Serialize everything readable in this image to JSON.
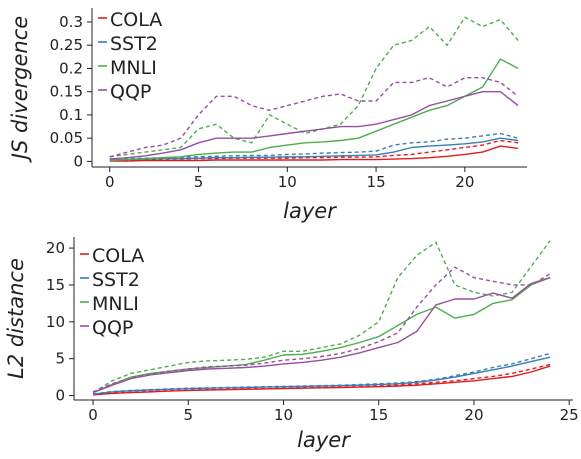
{
  "chart_data": [
    {
      "type": "line",
      "xlabel": "layer",
      "ylabel": "JS divergence",
      "xlim": [
        -1,
        23.5
      ],
      "ylim": [
        -0.012,
        0.33
      ],
      "xticks": [
        0,
        5,
        10,
        15,
        20
      ],
      "yticks": [
        0,
        0.05,
        0.1,
        0.15,
        0.2,
        0.25,
        0.3
      ],
      "ytick_labels": [
        "0",
        "0.05",
        "0.1",
        "0.15",
        "0.2",
        "0.25",
        "0.3"
      ],
      "grid": false,
      "legend_position": "top-left",
      "legend": [
        "COLA",
        "SST2",
        "MNLI",
        "QQP"
      ],
      "series": [
        {
          "name": "COLA",
          "color": "#e41a1c",
          "style": "solid",
          "x": [
            0,
            1,
            2,
            3,
            4,
            5,
            6,
            7,
            8,
            9,
            10,
            11,
            12,
            13,
            14,
            15,
            16,
            17,
            18,
            19,
            20,
            21,
            22,
            23
          ],
          "y": [
            0.001,
            0.001,
            0.002,
            0.002,
            0.002,
            0.002,
            0.003,
            0.003,
            0.003,
            0.003,
            0.003,
            0.003,
            0.003,
            0.004,
            0.004,
            0.004,
            0.005,
            0.006,
            0.008,
            0.011,
            0.015,
            0.02,
            0.033,
            0.028
          ]
        },
        {
          "color": "#e41a1c",
          "style": "dashed",
          "x": [
            0,
            1,
            2,
            3,
            4,
            5,
            6,
            7,
            8,
            9,
            10,
            11,
            12,
            13,
            14,
            15,
            16,
            17,
            18,
            19,
            20,
            21,
            22,
            23
          ],
          "y": [
            0.002,
            0.003,
            0.004,
            0.005,
            0.005,
            0.006,
            0.006,
            0.007,
            0.007,
            0.007,
            0.007,
            0.008,
            0.008,
            0.009,
            0.009,
            0.01,
            0.013,
            0.015,
            0.02,
            0.025,
            0.03,
            0.035,
            0.045,
            0.04
          ]
        },
        {
          "name": "SST2",
          "color": "#377eb8",
          "style": "solid",
          "x": [
            0,
            1,
            2,
            3,
            4,
            5,
            6,
            7,
            8,
            9,
            10,
            11,
            12,
            13,
            14,
            15,
            16,
            17,
            18,
            19,
            20,
            21,
            22,
            23
          ],
          "y": [
            0.003,
            0.004,
            0.005,
            0.006,
            0.006,
            0.007,
            0.008,
            0.008,
            0.009,
            0.009,
            0.01,
            0.01,
            0.011,
            0.012,
            0.013,
            0.014,
            0.02,
            0.03,
            0.033,
            0.035,
            0.038,
            0.042,
            0.05,
            0.045
          ]
        },
        {
          "color": "#377eb8",
          "style": "dashed",
          "x": [
            0,
            1,
            2,
            3,
            4,
            5,
            6,
            7,
            8,
            9,
            10,
            11,
            12,
            13,
            14,
            15,
            16,
            17,
            18,
            19,
            20,
            21,
            22,
            23
          ],
          "y": [
            0.005,
            0.006,
            0.007,
            0.008,
            0.009,
            0.01,
            0.011,
            0.012,
            0.013,
            0.013,
            0.015,
            0.016,
            0.018,
            0.019,
            0.02,
            0.022,
            0.035,
            0.04,
            0.042,
            0.048,
            0.05,
            0.055,
            0.06,
            0.05
          ]
        },
        {
          "name": "MNLI",
          "color": "#4daf4a",
          "style": "solid",
          "x": [
            0,
            1,
            2,
            3,
            4,
            5,
            6,
            7,
            8,
            9,
            10,
            11,
            12,
            13,
            14,
            15,
            16,
            17,
            18,
            19,
            20,
            21,
            22,
            23
          ],
          "y": [
            0.002,
            0.004,
            0.006,
            0.008,
            0.01,
            0.015,
            0.018,
            0.02,
            0.02,
            0.03,
            0.035,
            0.04,
            0.042,
            0.045,
            0.05,
            0.065,
            0.08,
            0.095,
            0.11,
            0.12,
            0.14,
            0.16,
            0.22,
            0.2
          ]
        },
        {
          "color": "#4daf4a",
          "style": "dashed",
          "x": [
            0,
            1,
            2,
            3,
            4,
            5,
            6,
            7,
            8,
            9,
            10,
            11,
            12,
            13,
            14,
            15,
            16,
            17,
            18,
            19,
            20,
            21,
            22,
            23
          ],
          "y": [
            0.01,
            0.015,
            0.02,
            0.025,
            0.03,
            0.07,
            0.08,
            0.05,
            0.04,
            0.1,
            0.08,
            0.06,
            0.07,
            0.08,
            0.12,
            0.2,
            0.25,
            0.26,
            0.29,
            0.25,
            0.31,
            0.29,
            0.305,
            0.26
          ]
        },
        {
          "name": "QQP",
          "color": "#984ea3",
          "style": "solid",
          "x": [
            0,
            1,
            2,
            3,
            4,
            5,
            6,
            7,
            8,
            9,
            10,
            11,
            12,
            13,
            14,
            15,
            16,
            17,
            18,
            19,
            20,
            21,
            22,
            23
          ],
          "y": [
            0.005,
            0.008,
            0.012,
            0.018,
            0.025,
            0.04,
            0.05,
            0.05,
            0.05,
            0.055,
            0.06,
            0.065,
            0.07,
            0.075,
            0.075,
            0.08,
            0.09,
            0.1,
            0.12,
            0.13,
            0.14,
            0.15,
            0.15,
            0.12
          ]
        },
        {
          "color": "#984ea3",
          "style": "dashed",
          "x": [
            0,
            1,
            2,
            3,
            4,
            5,
            6,
            7,
            8,
            9,
            10,
            11,
            12,
            13,
            14,
            15,
            16,
            17,
            18,
            19,
            20,
            21,
            22,
            23
          ],
          "y": [
            0.01,
            0.02,
            0.03,
            0.035,
            0.05,
            0.1,
            0.14,
            0.14,
            0.12,
            0.11,
            0.12,
            0.13,
            0.14,
            0.145,
            0.13,
            0.13,
            0.17,
            0.17,
            0.18,
            0.16,
            0.18,
            0.18,
            0.17,
            0.14
          ]
        }
      ]
    },
    {
      "type": "line",
      "xlabel": "layer",
      "ylabel": "L2 distance",
      "xlim": [
        -1,
        25.2
      ],
      "ylim": [
        -0.6,
        21.5
      ],
      "xticks": [
        0,
        5,
        10,
        15,
        20,
        25
      ],
      "yticks": [
        0,
        5,
        10,
        15,
        20
      ],
      "ytick_labels": [
        "0",
        "5",
        "10",
        "15",
        "20"
      ],
      "grid": false,
      "legend_position": "top-left",
      "legend": [
        "COLA",
        "SST2",
        "MNLI",
        "QQP"
      ],
      "series": [
        {
          "name": "COLA",
          "color": "#e41a1c",
          "style": "solid",
          "x": [
            0,
            1,
            2,
            3,
            4,
            5,
            6,
            7,
            8,
            9,
            10,
            11,
            12,
            13,
            14,
            15,
            16,
            17,
            18,
            19,
            20,
            21,
            22,
            23,
            24
          ],
          "y": [
            0.1,
            0.3,
            0.4,
            0.5,
            0.6,
            0.7,
            0.75,
            0.8,
            0.85,
            0.9,
            0.95,
            1.0,
            1.05,
            1.1,
            1.15,
            1.2,
            1.3,
            1.4,
            1.6,
            1.8,
            2.0,
            2.3,
            2.6,
            3.2,
            4.0
          ]
        },
        {
          "color": "#e41a1c",
          "style": "dashed",
          "x": [
            0,
            1,
            2,
            3,
            4,
            5,
            6,
            7,
            8,
            9,
            10,
            11,
            12,
            13,
            14,
            15,
            16,
            17,
            18,
            19,
            20,
            21,
            22,
            23,
            24
          ],
          "y": [
            0.1,
            0.35,
            0.45,
            0.55,
            0.65,
            0.75,
            0.8,
            0.85,
            0.9,
            0.95,
            1.0,
            1.05,
            1.1,
            1.15,
            1.2,
            1.3,
            1.4,
            1.6,
            1.8,
            2.0,
            2.3,
            2.6,
            3.0,
            3.6,
            4.2
          ]
        },
        {
          "name": "SST2",
          "color": "#377eb8",
          "style": "solid",
          "x": [
            0,
            1,
            2,
            3,
            4,
            5,
            6,
            7,
            8,
            9,
            10,
            11,
            12,
            13,
            14,
            15,
            16,
            17,
            18,
            19,
            20,
            21,
            22,
            23,
            24
          ],
          "y": [
            0.2,
            0.5,
            0.65,
            0.75,
            0.85,
            0.95,
            1.0,
            1.05,
            1.1,
            1.15,
            1.2,
            1.25,
            1.3,
            1.35,
            1.4,
            1.5,
            1.6,
            1.8,
            2.1,
            2.5,
            3.0,
            3.5,
            4.0,
            4.6,
            5.2
          ]
        },
        {
          "color": "#377eb8",
          "style": "dashed",
          "x": [
            0,
            1,
            2,
            3,
            4,
            5,
            6,
            7,
            8,
            9,
            10,
            11,
            12,
            13,
            14,
            15,
            16,
            17,
            18,
            19,
            20,
            21,
            22,
            23,
            24
          ],
          "y": [
            0.2,
            0.55,
            0.7,
            0.8,
            0.9,
            1.0,
            1.05,
            1.1,
            1.15,
            1.2,
            1.25,
            1.3,
            1.35,
            1.4,
            1.5,
            1.6,
            1.7,
            1.9,
            2.2,
            2.7,
            3.2,
            3.8,
            4.3,
            5.0,
            5.7
          ]
        },
        {
          "name": "MNLI",
          "color": "#4daf4a",
          "style": "solid",
          "x": [
            0,
            1,
            2,
            3,
            4,
            5,
            6,
            7,
            8,
            9,
            10,
            11,
            12,
            13,
            14,
            15,
            16,
            17,
            18,
            19,
            20,
            21,
            22,
            23,
            24
          ],
          "y": [
            0.4,
            1.5,
            2.5,
            3.0,
            3.3,
            3.6,
            3.8,
            4.0,
            4.2,
            4.8,
            5.5,
            5.6,
            6.0,
            6.5,
            7.2,
            8.0,
            9.5,
            11.0,
            12.0,
            10.5,
            11.0,
            12.5,
            13.0,
            15.0,
            16.0
          ]
        },
        {
          "color": "#4daf4a",
          "style": "dashed",
          "x": [
            0,
            1,
            2,
            3,
            4,
            5,
            6,
            7,
            8,
            9,
            10,
            11,
            12,
            13,
            14,
            15,
            16,
            17,
            18,
            19,
            20,
            21,
            22,
            23,
            24
          ],
          "y": [
            0.4,
            2.0,
            3.0,
            3.5,
            4.0,
            4.5,
            4.7,
            4.8,
            4.9,
            5.2,
            6.0,
            6.0,
            6.5,
            7.0,
            8.2,
            10.0,
            16.0,
            19.0,
            20.8,
            15.0,
            14.0,
            13.5,
            14.0,
            17.5,
            21.0
          ]
        },
        {
          "name": "QQP",
          "color": "#984ea3",
          "style": "solid",
          "x": [
            0,
            1,
            2,
            3,
            4,
            5,
            6,
            7,
            8,
            9,
            10,
            11,
            12,
            13,
            14,
            15,
            16,
            17,
            18,
            19,
            20,
            21,
            22,
            23,
            24
          ],
          "y": [
            0.4,
            1.4,
            2.3,
            2.8,
            3.1,
            3.4,
            3.6,
            3.7,
            3.8,
            4.0,
            4.3,
            4.5,
            4.8,
            5.2,
            5.8,
            6.5,
            7.2,
            8.7,
            12.3,
            13.1,
            13.1,
            13.9,
            13.2,
            15.2,
            16.0
          ]
        },
        {
          "color": "#984ea3",
          "style": "dashed",
          "x": [
            0,
            1,
            2,
            3,
            4,
            5,
            6,
            7,
            8,
            9,
            10,
            11,
            12,
            13,
            14,
            15,
            16,
            17,
            18,
            19,
            20,
            21,
            22,
            23,
            24
          ],
          "y": [
            0.5,
            1.6,
            2.4,
            2.9,
            3.3,
            3.6,
            3.9,
            4.0,
            4.1,
            4.4,
            4.8,
            5.0,
            5.3,
            5.7,
            6.4,
            7.3,
            8.5,
            12.0,
            15.0,
            17.4,
            16.0,
            15.5,
            15.0,
            15.0,
            16.5
          ]
        }
      ]
    }
  ]
}
